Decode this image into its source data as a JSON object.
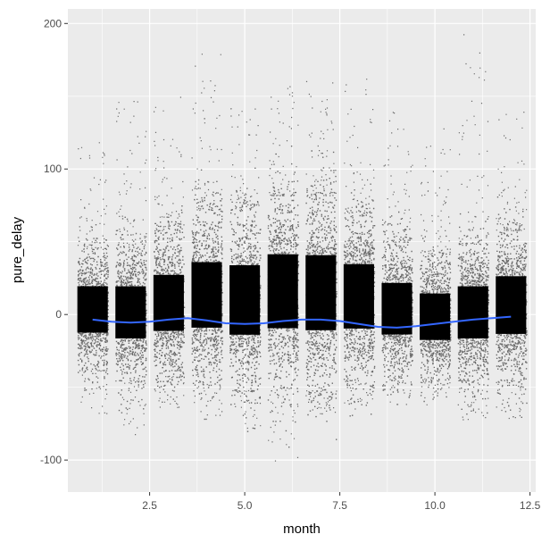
{
  "chart_data": {
    "type": "scatter",
    "title": "",
    "xlabel": "month",
    "ylabel": "pure_delay",
    "xlim": [
      0.35,
      12.65
    ],
    "ylim": [
      -122,
      210
    ],
    "x_ticks": [
      2.5,
      5.0,
      7.5,
      10.0,
      12.5
    ],
    "x_tick_labels": [
      "2.5",
      "5.0",
      "7.5",
      "10.0",
      "12.5"
    ],
    "y_ticks": [
      -100,
      0,
      100,
      200
    ],
    "y_tick_labels": [
      "-100",
      "0",
      "100",
      "200"
    ],
    "grid": true,
    "background": "#ebebeb",
    "grid_color": "#ffffff",
    "point_color": "#000000",
    "points": {
      "categories": [
        1,
        2,
        3,
        4,
        5,
        6,
        7,
        8,
        9,
        10,
        11,
        12
      ],
      "jitter_width": 0.4,
      "dense_range": [
        [
          -38,
          45
        ],
        [
          -45,
          48
        ],
        [
          -42,
          58
        ],
        [
          -45,
          72
        ],
        [
          -52,
          72
        ],
        [
          -50,
          82
        ],
        [
          -52,
          82
        ],
        [
          -45,
          70
        ],
        [
          -42,
          50
        ],
        [
          -43,
          40
        ],
        [
          -45,
          48
        ],
        [
          -45,
          58
        ]
      ],
      "outlier_max": [
        128,
        150,
        150,
        182,
        142,
        158,
        162,
        165,
        140,
        132,
        198,
        148
      ],
      "outlier_min": [
        -68,
        -85,
        -65,
        -70,
        -78,
        -110,
        -68,
        -65,
        -62,
        -62,
        -72,
        -72
      ]
    },
    "series": [
      {
        "type": "smooth",
        "color": "#3366ff",
        "x": [
          1.0,
          1.5,
          2.0,
          2.5,
          3.0,
          3.5,
          4.0,
          4.5,
          5.0,
          5.5,
          6.0,
          6.5,
          7.0,
          7.5,
          8.0,
          8.5,
          9.0,
          9.5,
          10.0,
          10.5,
          11.0,
          11.5,
          12.0
        ],
        "y": [
          -3.5,
          -5.0,
          -5.5,
          -5.0,
          -3.5,
          -2.5,
          -4.0,
          -6.0,
          -6.5,
          -6.0,
          -4.5,
          -3.5,
          -3.5,
          -4.5,
          -6.5,
          -8.5,
          -9.0,
          -8.0,
          -6.5,
          -5.0,
          -3.5,
          -2.5,
          -1.5
        ]
      }
    ]
  }
}
